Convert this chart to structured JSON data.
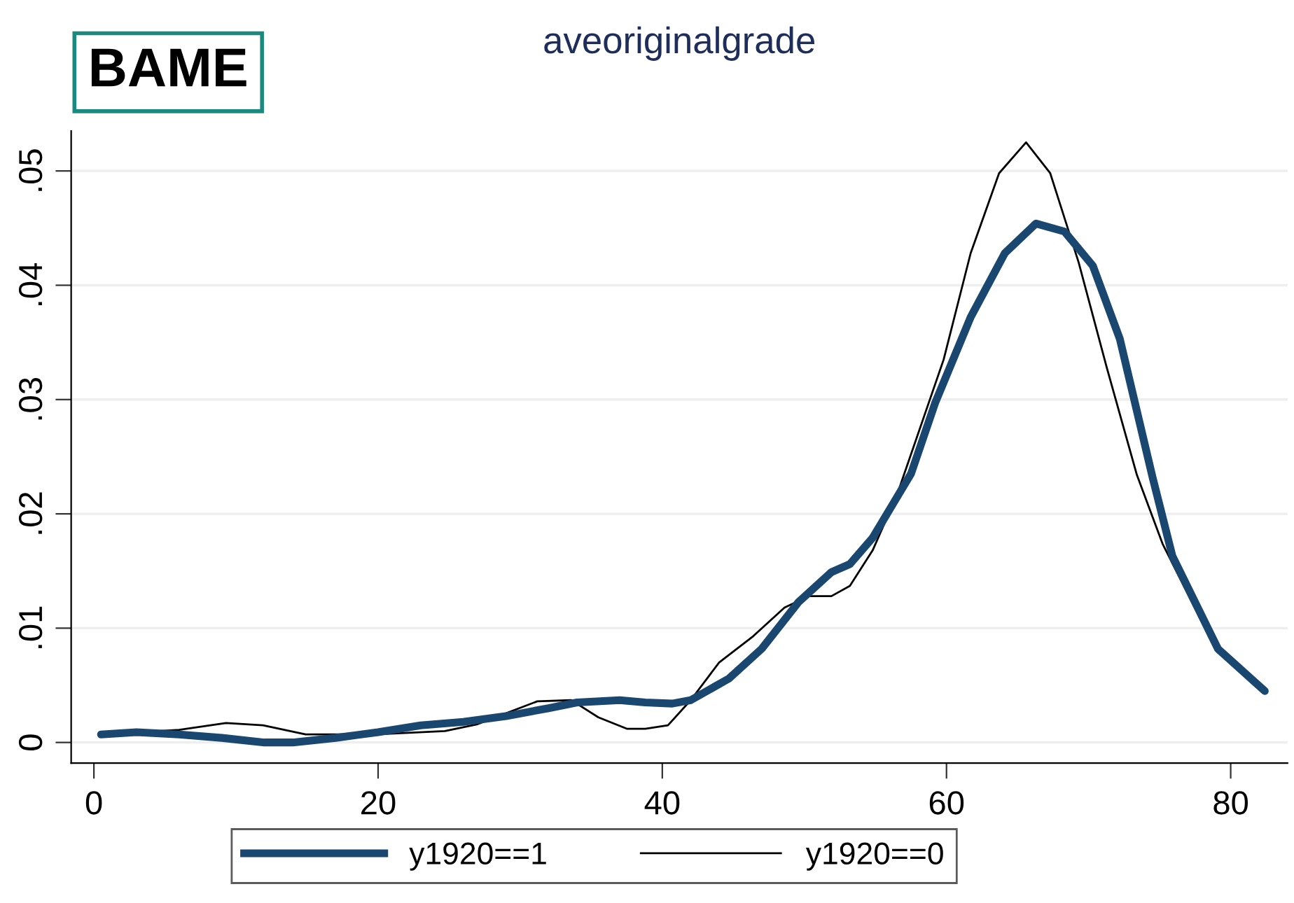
{
  "chart_data": {
    "type": "line",
    "title": "aveoriginalgrade",
    "annotations": [
      "BAME"
    ],
    "xlim": [
      -1.6,
      84
    ],
    "xticks": [
      0,
      20,
      40,
      60,
      80
    ],
    "ylim": [
      -0.0018,
      0.0535
    ],
    "yticks": [
      {
        "value": 0,
        "label": "0"
      },
      {
        "value": 0.01,
        "label": ".01"
      },
      {
        "value": 0.02,
        "label": ".02"
      },
      {
        "value": 0.03,
        "label": ".03"
      },
      {
        "value": 0.04,
        "label": ".04"
      },
      {
        "value": 0.05,
        "label": ".05"
      }
    ],
    "grid": "y",
    "legend": "bottom",
    "series": [
      {
        "name": "y1920==1",
        "color": "#1a476f",
        "x": [
          0.5,
          3,
          6,
          9,
          12,
          14,
          17,
          20,
          23,
          26,
          29,
          32,
          34,
          37,
          38.8,
          40.7,
          42,
          44.7,
          47,
          49.6,
          51.9,
          53.2,
          54.8,
          56.2,
          57.5,
          59.2,
          61.7,
          64.1,
          66.3,
          68.3,
          70.3,
          72.2,
          74.5,
          75.9,
          79.1,
          82.4
        ],
        "values": [
          0.0007,
          0.0009,
          0.0007,
          0.0004,
          0.0,
          0.0,
          0.0004,
          0.0009,
          0.0015,
          0.0018,
          0.0023,
          0.003,
          0.0035,
          0.0037,
          0.0035,
          0.0034,
          0.0037,
          0.0056,
          0.0082,
          0.0123,
          0.0149,
          0.0156,
          0.0179,
          0.0208,
          0.0235,
          0.0297,
          0.0372,
          0.0428,
          0.0454,
          0.0447,
          0.0417,
          0.0353,
          0.0232,
          0.0163,
          0.0082,
          0.0045
        ]
      },
      {
        "name": "y1920==0",
        "color": "#000000",
        "x": [
          0.5,
          3.3,
          6,
          9.3,
          11.9,
          14.9,
          19.8,
          24.7,
          27,
          31.2,
          33.6,
          35.5,
          37.5,
          38.8,
          40.4,
          42,
          44,
          46.4,
          48.6,
          50.3,
          51.9,
          53.2,
          54.8,
          56.5,
          59.8,
          61.7,
          63.7,
          65.6,
          67.3,
          69.3,
          71.3,
          73.4,
          75.2,
          78.2,
          79.4,
          82.4
        ],
        "values": [
          0.0007,
          0.0009,
          0.0011,
          0.0017,
          0.0015,
          0.0007,
          0.0007,
          0.001,
          0.0016,
          0.0036,
          0.0037,
          0.0022,
          0.0012,
          0.0012,
          0.0015,
          0.0037,
          0.007,
          0.0093,
          0.0118,
          0.0128,
          0.0128,
          0.0137,
          0.0168,
          0.0216,
          0.0335,
          0.0428,
          0.0498,
          0.0525,
          0.0498,
          0.042,
          0.0327,
          0.0234,
          0.0174,
          0.01,
          0.0078,
          0.0045
        ]
      }
    ]
  }
}
